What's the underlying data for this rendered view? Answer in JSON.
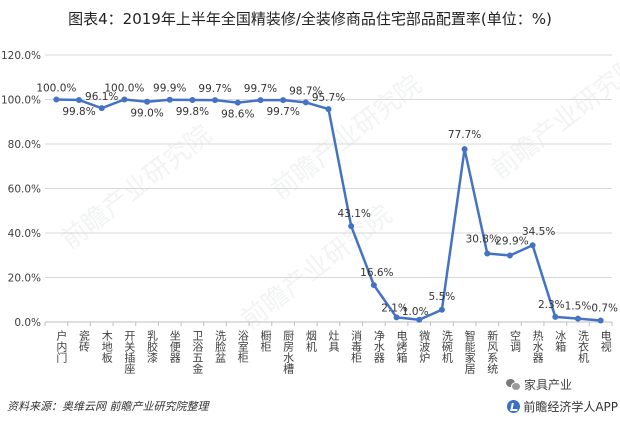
{
  "title": "图表4：2019年上半年全国精装修/全装修商品住宅部品配置率(单位：%)",
  "source": "资料来源：奥维云网 前瞻产业研究院整理",
  "watermark": {
    "wechat_label": "家具产业",
    "badge_label": "前瞻经济学人APP",
    "logo_text": "前瞻产业研究院"
  },
  "colors": {
    "line": "#4472c4",
    "grid": "#d9d9d9",
    "axis_text": "#404040",
    "label_text": "#333333"
  },
  "chart_data": {
    "type": "line",
    "title": "图表4：2019年上半年全国精装修/全装修商品住宅部品配置率(单位：%)",
    "xlabel": "",
    "ylabel": "",
    "ylim": [
      0,
      120
    ],
    "y_ticks": [
      "0.0%",
      "20.0%",
      "40.0%",
      "60.0%",
      "80.0%",
      "100.0%",
      "120.0%"
    ],
    "grid": true,
    "legend": "none",
    "categories": [
      "户内门",
      "瓷砖",
      "木地板",
      "开关插座",
      "乳胶漆",
      "坐便器",
      "卫浴五金",
      "洗脸盆",
      "浴室柜",
      "橱柜",
      "厨房水槽",
      "烟机",
      "灶具",
      "消毒柜",
      "净水器",
      "电烤箱",
      "微波炉",
      "洗碗机",
      "智能家居",
      "新风系统",
      "空调",
      "热水器",
      "冰箱",
      "洗衣机",
      "电视"
    ],
    "values": [
      100.0,
      99.8,
      96.1,
      100.0,
      99.0,
      99.9,
      99.8,
      99.7,
      98.6,
      99.7,
      99.7,
      98.7,
      95.7,
      43.1,
      16.6,
      2.1,
      1.0,
      5.5,
      77.7,
      30.8,
      29.9,
      34.5,
      2.3,
      1.5,
      0.7
    ],
    "data_labels": [
      "100.0%",
      "99.8%",
      "96.1%",
      "100.0%",
      "99.0%",
      "99.9%",
      "99.8%",
      "99.7%",
      "98.6%",
      "99.7%",
      "99.7%",
      "98.7%",
      "95.7%",
      "43.1%",
      "16.6%",
      "2.1%",
      "1.0%",
      "5.5%",
      "77.7%",
      "30.8%",
      "29.9%",
      "34.5%",
      "2.3%",
      "1.5%",
      "0.7%"
    ]
  }
}
